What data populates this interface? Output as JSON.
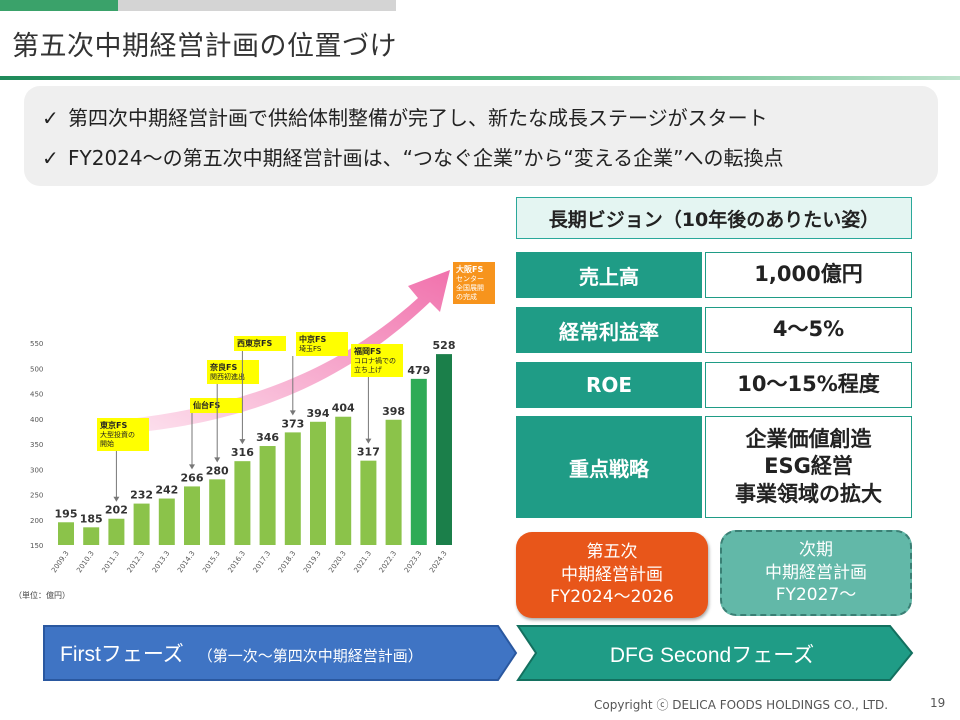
{
  "title": "第五次中期経営計画の位置づけ",
  "bullets": [
    "第四次中期経営計画で供給体制整備が完了し、新たな成長ステージがスタート",
    "FY2024～の第五次中期経営計画は、“つなぐ企業”から“変える企業”への転換点"
  ],
  "check_icon": "check-icon",
  "colors": {
    "accent": "#1f9c86",
    "bar": "#8bc34a",
    "bar_dark": "#1b7f4a",
    "arrow": "#f49ac1",
    "orange": "#e8561a"
  },
  "chart_data": {
    "type": "bar",
    "categories": [
      "2009.3",
      "2010.3",
      "2011.3",
      "2012.3",
      "2013.3",
      "2014.3",
      "2015.3",
      "2016.3",
      "2017.3",
      "2018.3",
      "2019.3",
      "2020.3",
      "2021.3",
      "2022.3",
      "2023.3",
      "2024.3"
    ],
    "values": [
      195,
      185,
      202,
      232,
      242,
      266,
      280,
      316,
      346,
      373,
      394,
      404,
      317,
      398,
      479,
      528
    ],
    "ylim": [
      150,
      550
    ],
    "yticks": [
      "150",
      "200",
      "250",
      "300",
      "350",
      "400",
      "450",
      "500",
      "550"
    ],
    "unit_label": "（単位：億円）",
    "grid": false,
    "annotations": [
      {
        "bar": 2,
        "lines": [
          "東京FS",
          "大型投資の",
          "開始"
        ],
        "style": "yellow"
      },
      {
        "bar": 5,
        "lines": [
          "仙台FS"
        ],
        "style": "yellow"
      },
      {
        "bar": 6,
        "lines": [
          "奈良FS",
          "関西初進出"
        ],
        "style": "yellow"
      },
      {
        "bar": 7,
        "lines": [
          "西東京FS"
        ],
        "style": "yellow"
      },
      {
        "bar": 9,
        "lines": [
          "中京FS",
          "埼玉FS"
        ],
        "style": "yellow"
      },
      {
        "bar": 12,
        "lines": [
          "福岡FS",
          "コロナ禍での",
          "立ち上げ"
        ],
        "style": "yellow"
      },
      {
        "bar": 15,
        "lines": [
          "大阪FS",
          "センター",
          "全国展開",
          "の完成"
        ],
        "style": "orange"
      }
    ]
  },
  "vision": {
    "header": "長期ビジョン（10年後のありたい姿）",
    "rows": [
      {
        "label": "売上高",
        "value": [
          "1,000億円"
        ]
      },
      {
        "label": "経常利益率",
        "value": [
          "4～5%"
        ]
      },
      {
        "label": "ROE",
        "value": [
          "10～15%程度"
        ]
      },
      {
        "label": "重点戦略",
        "value": [
          "企業価値創造",
          "ESG経営",
          "事業領域の拡大"
        ]
      }
    ]
  },
  "plans": {
    "current": [
      "第五次",
      "中期経営計画",
      "FY2024～2026"
    ],
    "next": [
      "次期",
      "中期経営計画",
      "FY2027～"
    ]
  },
  "phases": {
    "first_main": "Firstフェーズ",
    "first_sub": "（第一次～第四次中期経営計画）",
    "second": "DFG Secondフェーズ"
  },
  "footer": {
    "copyright": "Copyright ⓒ DELICA FOODS HOLDINGS CO., LTD.",
    "page": "19"
  }
}
